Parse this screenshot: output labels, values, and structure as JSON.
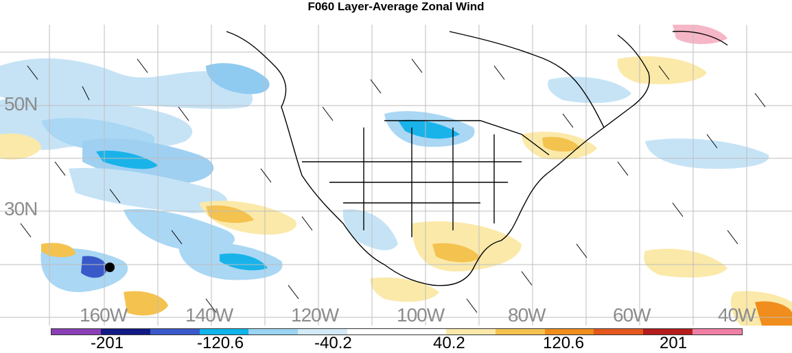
{
  "title": "F060 Layer-Average Zonal Wind",
  "lat_labels": [
    "50N",
    "30N"
  ],
  "lon_labels": [
    "160W",
    "140W",
    "120W",
    "100W",
    "80W",
    "60W",
    "40W"
  ],
  "colorbar": {
    "colors": [
      "#8a3fb6",
      "#111a86",
      "#3a59c9",
      "#0fb4ea",
      "#9ad4f2",
      "#d3eaf8",
      "#ffffff",
      "#ffffff",
      "#fbe9a9",
      "#f4c24f",
      "#f08d1c",
      "#e4571d",
      "#b51c1c",
      "#f07fa5"
    ],
    "labels": [
      "-201",
      "-120.6",
      "-40.2",
      "40.2",
      "120.6",
      "201"
    ]
  },
  "marker": "station-dot"
}
